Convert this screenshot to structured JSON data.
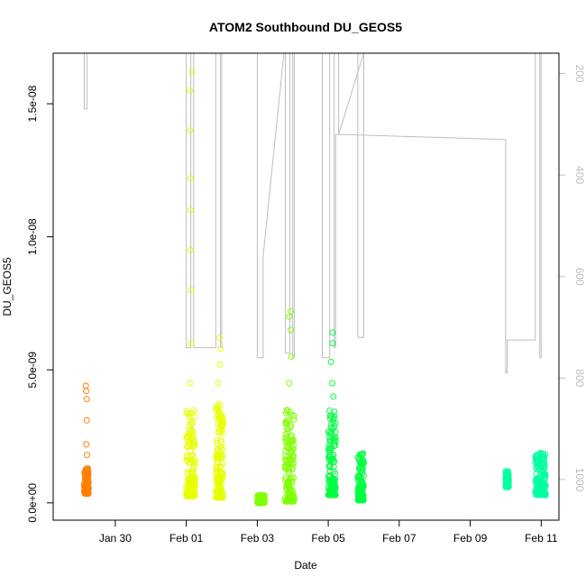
{
  "chart_data": {
    "type": "scatter",
    "title": "ATOM2 Southbound DU_GEOS5",
    "xlabel": "Date",
    "ylabel": "DU_GEOS5",
    "x_unit": "days",
    "xlim": [
      "Jan 28 2017 06:00",
      "Feb 11 2017 12:00"
    ],
    "ylim": [
      -6.5e-10,
      1.69e-08
    ],
    "right_axis_range_top_to_bottom": [
      160,
      1080
    ],
    "x_tick_labels": [
      "Jan 30",
      "Feb 01",
      "Feb 03",
      "Feb 05",
      "Feb 07",
      "Feb 09",
      "Feb 11"
    ],
    "y_tick_values": [
      0,
      5e-09,
      1e-08,
      1.5e-08
    ],
    "y_tick_labels": [
      "0.0e+00",
      "5.0e-09",
      "1.0e-08",
      "1.5e-08"
    ],
    "right_tick_labels": [
      "200",
      "400",
      "600",
      "800",
      "1000"
    ],
    "right_tick_values": [
      200,
      400,
      600,
      800,
      1000
    ],
    "grid": false,
    "legend": "none",
    "series": [
      {
        "color": "#FF8000",
        "segments": [
          {
            "date": "Jan 29",
            "x_start": "Jan 29 2017 03:00",
            "x_end": "Jan 29 2017 06:00",
            "y_min": 3.5e-10,
            "y_max": 1.3e-09,
            "spikes": [
              1.8e-09,
              2.2e-09,
              3.1e-09,
              3.9e-09,
              4.2e-09,
              4.4e-09
            ]
          }
        ]
      },
      {
        "color": "#E6FF00",
        "segments": [
          {
            "date": "Feb 01",
            "x_start": "Feb 01 2017 00:00",
            "x_end": "Feb 01 2017 06:00",
            "y_min": 2.5e-10,
            "y_max": 3.5e-09,
            "spikes": [
              4.5e-09,
              6e-09,
              8e-09,
              9.5e-09,
              1.1e-08,
              1.22e-08,
              1.4e-08,
              1.55e-08,
              1.62e-08
            ]
          },
          {
            "date": "Feb 01",
            "x_start": "Feb 01 2017 20:00",
            "x_end": "Feb 02 2017 01:00",
            "y_min": 2e-10,
            "y_max": 3.8e-09,
            "spikes": [
              4.5e-09,
              5.2e-09,
              5.8e-09,
              6.2e-09
            ]
          }
        ]
      },
      {
        "color": "#80FF00",
        "segments": [
          {
            "date": "Feb 03",
            "x_start": "Feb 03 2017 00:00",
            "x_end": "Feb 03 2017 05:00",
            "y_min": 0,
            "y_max": 3e-10,
            "spikes": []
          },
          {
            "date": "Feb 03",
            "x_start": "Feb 03 2017 19:00",
            "x_end": "Feb 04 2017 01:00",
            "y_min": 5e-11,
            "y_max": 3.5e-09,
            "spikes": [
              4.5e-09,
              5.5e-09,
              6.5e-09,
              7e-09,
              7.2e-09
            ]
          }
        ]
      },
      {
        "color": "#00FF40",
        "segments": [
          {
            "date": "Feb 05",
            "x_start": "Feb 05 2017 00:00",
            "x_end": "Feb 05 2017 05:00",
            "y_min": 3e-10,
            "y_max": 3.5e-09,
            "spikes": [
              4e-09,
              4.5e-09,
              5.3e-09,
              6e-09,
              6.4e-09
            ]
          },
          {
            "date": "Feb 05",
            "x_start": "Feb 05 2017 20:00",
            "x_end": "Feb 06 2017 00:00",
            "y_min": 1e-10,
            "y_max": 1.9e-09,
            "spikes": []
          }
        ]
      },
      {
        "color": "#00FFA0",
        "segments": [
          {
            "date": "Feb 10",
            "x_start": "Feb 10 2017 00:00",
            "x_end": "Feb 10 2017 02:00",
            "y_min": 6e-10,
            "y_max": 1.2e-09,
            "spikes": []
          },
          {
            "date": "Feb 10",
            "x_start": "Feb 10 2017 20:00",
            "x_end": "Feb 11 2017 03:00",
            "y_min": 3e-10,
            "y_max": 1.9e-09,
            "spikes": []
          }
        ]
      }
    ],
    "altitude_trace": {
      "color": "#BEBEBE",
      "points": [
        [
          "Jan 29 2017 03:00",
          160
        ],
        [
          "Jan 29 2017 03:00",
          270
        ],
        [
          "Jan 29 2017 05:00",
          270
        ],
        [
          "Jan 29 2017 05:00",
          160
        ],
        [
          "Feb 01 2017 00:00",
          160
        ],
        [
          "Feb 01 2017 00:00",
          740
        ],
        [
          "Feb 01 2017 03:00",
          740
        ],
        [
          "Feb 01 2017 03:00",
          160
        ],
        [
          "Feb 01 2017 05:00",
          160
        ],
        [
          "Feb 01 2017 05:00",
          740
        ],
        [
          "Feb 01 2017 20:00",
          740
        ],
        [
          "Feb 01 2017 20:00",
          160
        ],
        [
          "Feb 01 2017 23:00",
          160
        ],
        [
          "Feb 01 2017 23:00",
          740
        ],
        [
          "Feb 02 2017 00:00",
          740
        ],
        [
          "Feb 02 2017 00:00",
          160
        ],
        [
          "Feb 03 2017 00:00",
          160
        ],
        [
          "Feb 03 2017 00:00",
          760
        ],
        [
          "Feb 03 2017 04:00",
          760
        ],
        [
          "Feb 03 2017 04:00",
          560
        ],
        [
          "Feb 03 2017 18:00",
          160
        ],
        [
          "Feb 03 2017 19:00",
          160
        ],
        [
          "Feb 03 2017 19:00",
          750
        ],
        [
          "Feb 03 2017 22:00",
          750
        ],
        [
          "Feb 03 2017 22:00",
          160
        ],
        [
          "Feb 04 2017 00:00",
          160
        ],
        [
          "Feb 04 2017 00:00",
          760
        ],
        [
          "Feb 04 2017 01:00",
          760
        ],
        [
          "Feb 04 2017 01:00",
          160
        ],
        [
          "Feb 04 2017 20:00",
          160
        ],
        [
          "Feb 04 2017 20:00",
          760
        ],
        [
          "Feb 05 2017 01:00",
          760
        ],
        [
          "Feb 05 2017 01:00",
          160
        ],
        [
          "Feb 05 2017 04:00",
          160
        ],
        [
          "Feb 05 2017 04:00",
          740
        ],
        [
          "Feb 05 2017 05:00",
          740
        ],
        [
          "Feb 05 2017 05:00",
          320
        ],
        [
          "Feb 05 2017 07:00",
          320
        ],
        [
          "Feb 05 2017 07:00",
          160
        ],
        [
          "Feb 05 2017 20:00",
          160
        ],
        [
          "Feb 05 2017 20:00",
          720
        ],
        [
          "Feb 06 2017 00:00",
          720
        ],
        [
          "Feb 06 2017 00:00",
          160
        ],
        [
          "Feb 05 2017 07:00",
          320
        ],
        [
          "Feb 09 2017 23:00",
          330
        ],
        [
          "Feb 10 2017 00:00",
          330
        ],
        [
          "Feb 10 2017 00:00",
          790
        ],
        [
          "Feb 10 2017 01:00",
          790
        ],
        [
          "Feb 10 2017 01:00",
          725
        ],
        [
          "Feb 10 2017 20:00",
          725
        ],
        [
          "Feb 10 2017 20:00",
          160
        ],
        [
          "Feb 10 2017 23:00",
          160
        ],
        [
          "Feb 10 2017 23:00",
          760
        ],
        [
          "Feb 11 2017 00:00",
          760
        ],
        [
          "Feb 11 2017 00:00",
          160
        ]
      ]
    }
  }
}
